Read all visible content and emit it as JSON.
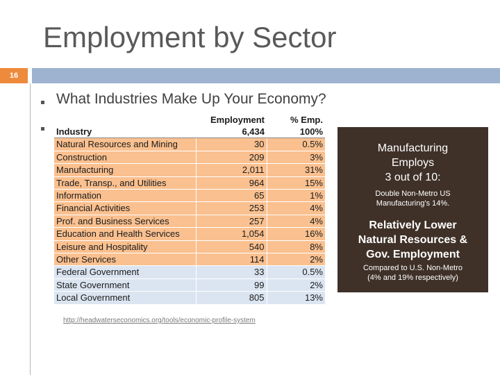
{
  "slide": {
    "title": "Employment by Sector",
    "number": "16"
  },
  "content": {
    "heading": "What Industries Make Up Your Economy?",
    "source_url": "http://headwaterseconomics.org/tools/economic-profile-system"
  },
  "table": {
    "headers": {
      "industry": "Industry",
      "employment": "Employment",
      "pct_emp": "% Emp.",
      "total_employment": "6,434",
      "total_pct": "100%"
    },
    "rows": [
      {
        "industry": "Natural Resources and Mining",
        "employment": "30",
        "pct": "0.5%",
        "group": "orange"
      },
      {
        "industry": "Construction",
        "employment": "209",
        "pct": "3%",
        "group": "orange"
      },
      {
        "industry": "Manufacturing",
        "employment": "2,011",
        "pct": "31%",
        "group": "orange"
      },
      {
        "industry": "Trade, Transp., and Utilities",
        "employment": "964",
        "pct": "15%",
        "group": "orange"
      },
      {
        "industry": "Information",
        "employment": "65",
        "pct": "1%",
        "group": "orange"
      },
      {
        "industry": "Financial Activities",
        "employment": "253",
        "pct": "4%",
        "group": "orange"
      },
      {
        "industry": "Prof. and Business Services",
        "employment": "257",
        "pct": "4%",
        "group": "orange"
      },
      {
        "industry": "Education and Health Services",
        "employment": "1,054",
        "pct": "16%",
        "group": "orange"
      },
      {
        "industry": "Leisure and Hospitality",
        "employment": "540",
        "pct": "8%",
        "group": "orange"
      },
      {
        "industry": "Other Services",
        "employment": "114",
        "pct": "2%",
        "group": "orange"
      },
      {
        "industry": "Federal Government",
        "employment": "33",
        "pct": "0.5%",
        "group": "blue"
      },
      {
        "industry": "State Government",
        "employment": "99",
        "pct": "2%",
        "group": "blue"
      },
      {
        "industry": "Local Government",
        "employment": "805",
        "pct": "13%",
        "group": "blue"
      }
    ]
  },
  "callout": {
    "mfg_line1": "Manufacturing",
    "mfg_line2": "Employs",
    "mfg_line3": "3 out of 10:",
    "mfg_note_line1": "Double Non-Metro US",
    "mfg_note_line2": "Manufacturing's 14%.",
    "gov_line1": "Relatively Lower",
    "gov_line2": "Natural Resources &",
    "gov_line3": "Gov.  Employment",
    "gov_note_line1": "Compared to U.S. Non-Metro",
    "gov_note_line2": "(4% and 19% respectively)"
  },
  "colors": {
    "accent_orange": "#ee8a3c",
    "band_blue": "#9db3cf",
    "private_row": "#fac08f",
    "government_row": "#dbe5f1",
    "callout_bg": "#3f3128"
  }
}
